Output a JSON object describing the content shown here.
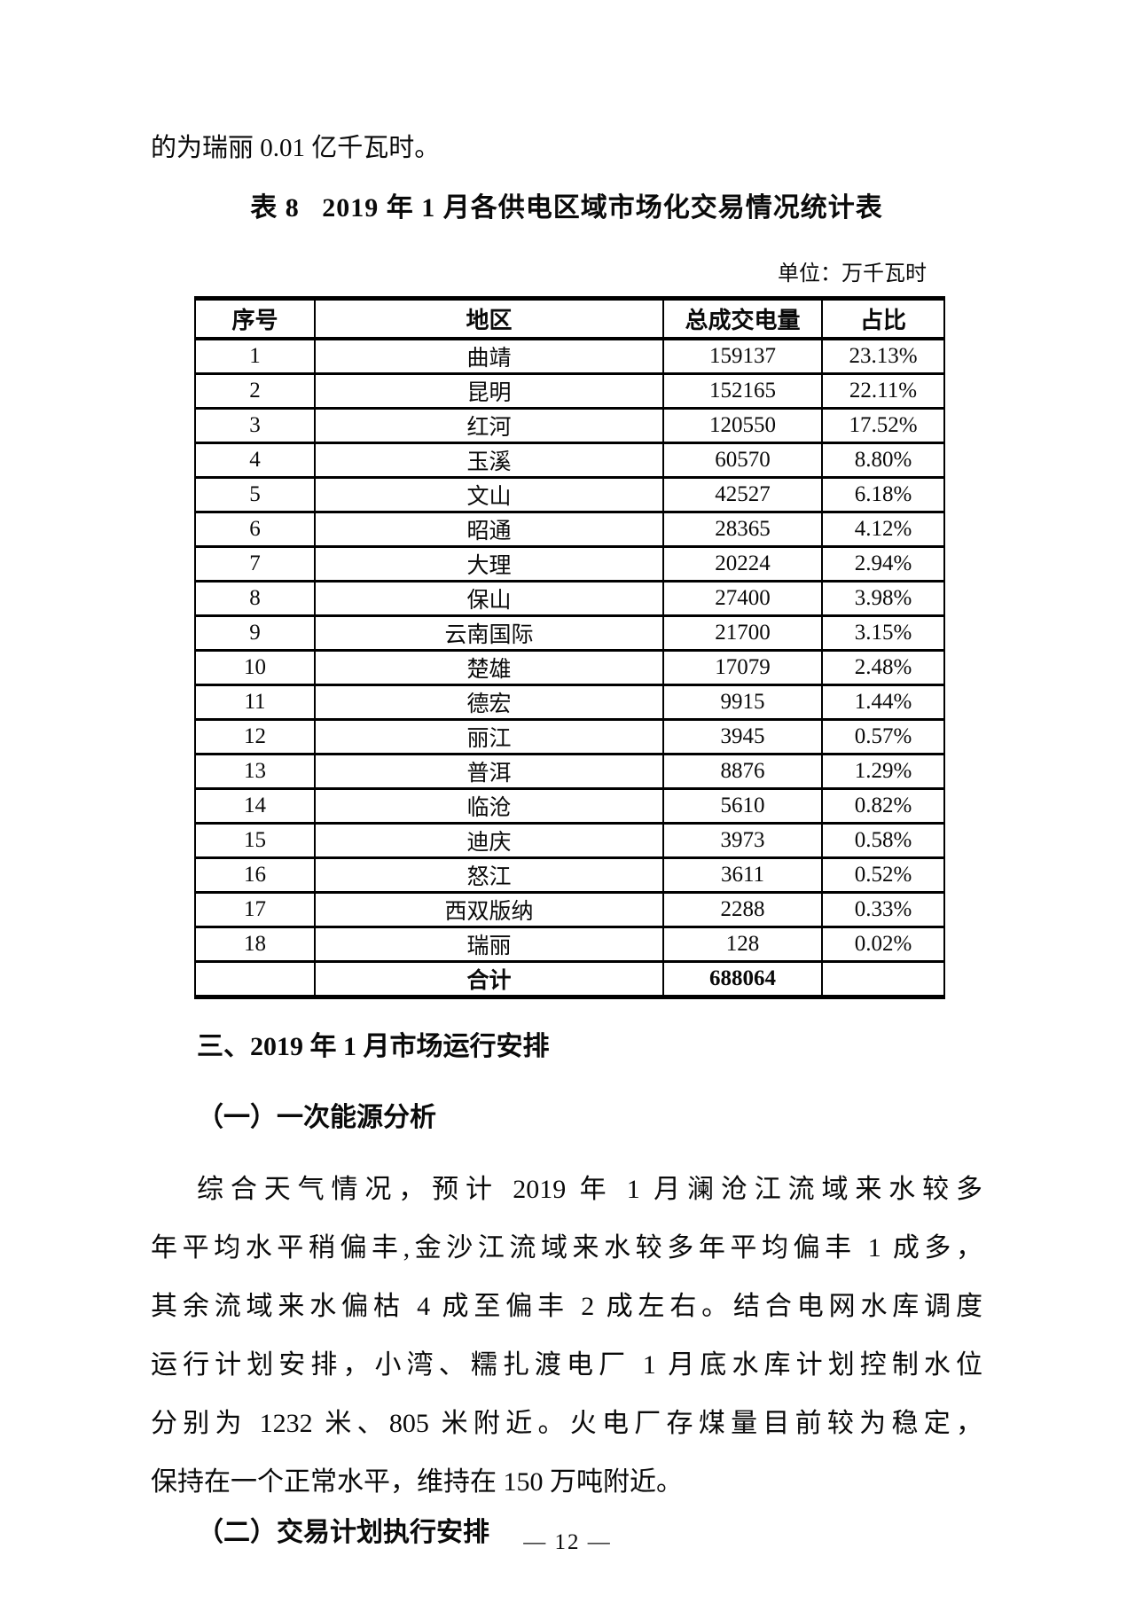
{
  "document": {
    "intro_line": "的为瑞丽 0.01 亿千瓦时。",
    "table_caption": "表 8   2019 年 1 月各供电区域市场化交易情况统计表",
    "unit_note": "单位：万千瓦时",
    "page_number": "— 12 —"
  },
  "table": {
    "headers": [
      "序号",
      "地区",
      "总成交电量",
      "占比"
    ],
    "rows": [
      [
        "1",
        "曲靖",
        "159137",
        "23.13%"
      ],
      [
        "2",
        "昆明",
        "152165",
        "22.11%"
      ],
      [
        "3",
        "红河",
        "120550",
        "17.52%"
      ],
      [
        "4",
        "玉溪",
        "60570",
        "8.80%"
      ],
      [
        "5",
        "文山",
        "42527",
        "6.18%"
      ],
      [
        "6",
        "昭通",
        "28365",
        "4.12%"
      ],
      [
        "7",
        "大理",
        "20224",
        "2.94%"
      ],
      [
        "8",
        "保山",
        "27400",
        "3.98%"
      ],
      [
        "9",
        "云南国际",
        "21700",
        "3.15%"
      ],
      [
        "10",
        "楚雄",
        "17079",
        "2.48%"
      ],
      [
        "11",
        "德宏",
        "9915",
        "1.44%"
      ],
      [
        "12",
        "丽江",
        "3945",
        "0.57%"
      ],
      [
        "13",
        "普洱",
        "8876",
        "1.29%"
      ],
      [
        "14",
        "临沧",
        "5610",
        "0.82%"
      ],
      [
        "15",
        "迪庆",
        "3973",
        "0.58%"
      ],
      [
        "16",
        "怒江",
        "3611",
        "0.52%"
      ],
      [
        "17",
        "西双版纳",
        "2288",
        "0.33%"
      ],
      [
        "18",
        "瑞丽",
        "128",
        "0.02%"
      ]
    ],
    "total_row": [
      "",
      "合计",
      "688064",
      ""
    ]
  },
  "sections": {
    "heading_3": "三、2019 年 1 月市场运行安排",
    "heading_3_1": "（一）一次能源分析",
    "paragraph_lines": [
      "综合天气情况，预计 2019 年 1 月澜沧江流域来水较多",
      "年平均水平稍偏丰,金沙江流域来水较多年平均偏丰 1 成多，",
      "其余流域来水偏枯 4 成至偏丰 2 成左右。结合电网水库调度",
      "运行计划安排，小湾、糯扎渡电厂 1 月底水库计划控制水位",
      "分别为 1232 米、805 米附近。火电厂存煤量目前较为稳定，",
      "保持在一个正常水平，维持在 150 万吨附近。"
    ],
    "heading_3_2": "（二）交易计划执行安排"
  }
}
